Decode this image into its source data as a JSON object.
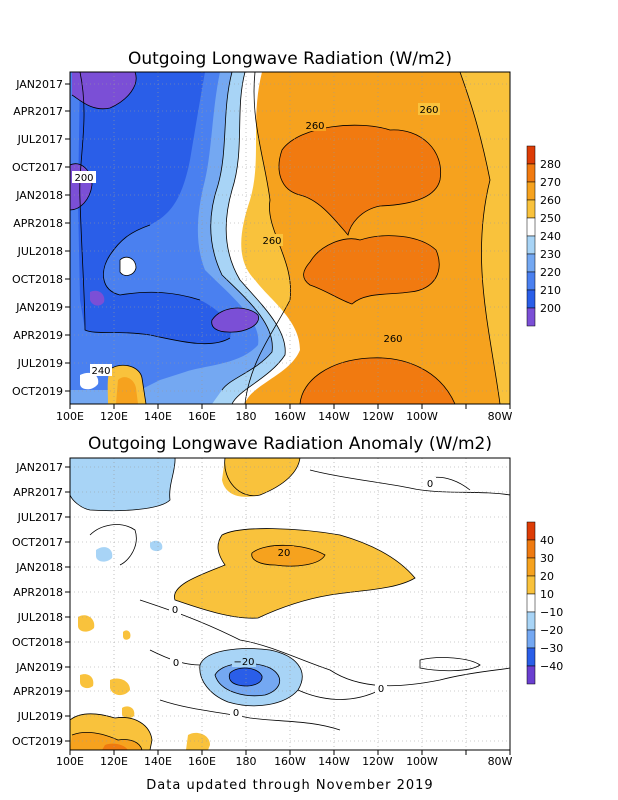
{
  "footer": "Data updated through November 2019",
  "chart_data": [
    {
      "type": "heatmap",
      "title": "Outgoing Longwave Radiation (W/m2)",
      "x_ticks": [
        "100E",
        "120E",
        "140E",
        "160E",
        "180",
        "160W",
        "140W",
        "120W",
        "100W",
        "80W"
      ],
      "y_ticks": [
        "JAN2017",
        "APR2017",
        "JUL2017",
        "OCT2017",
        "JAN2018",
        "APR2018",
        "JUL2018",
        "OCT2018",
        "JAN2019",
        "APR2019",
        "JUL2019",
        "OCT2019"
      ],
      "colorbar": {
        "labels": [
          "200",
          "210",
          "220",
          "230",
          "240",
          "250",
          "260",
          "270",
          "280"
        ],
        "colors": [
          "#7b4fd6",
          "#2a5ee8",
          "#4a80f0",
          "#74a8f2",
          "#a8d4f6",
          "#ffffff",
          "#f9c23c",
          "#f6a21e",
          "#f17a10",
          "#dd3c06"
        ]
      },
      "contour_labels": [
        "260",
        "260",
        "200",
        "260",
        "260",
        "240"
      ],
      "grid": true
    },
    {
      "type": "heatmap",
      "title": "Outgoing Longwave Radiation Anomaly (W/m2)",
      "x_ticks": [
        "100E",
        "120E",
        "140E",
        "160E",
        "180",
        "160W",
        "140W",
        "120W",
        "100W",
        "80W"
      ],
      "y_ticks": [
        "JAN2017",
        "APR2017",
        "JUL2017",
        "OCT2017",
        "JAN2018",
        "APR2018",
        "JUL2018",
        "OCT2018",
        "JAN2019",
        "APR2019",
        "JUL2019",
        "OCT2019"
      ],
      "colorbar": {
        "labels": [
          "40",
          "30",
          "20",
          "10",
          "−10",
          "−20",
          "−30",
          "−40"
        ],
        "colors": [
          "#6a3fd0",
          "#2a5ee8",
          "#74a8f2",
          "#a8d4f6",
          "#ffffff",
          "#f9c23c",
          "#f6a21e",
          "#ef7a10",
          "#dd3c06"
        ]
      },
      "contour_labels": [
        "0",
        "20",
        "0",
        "0",
        "−20",
        "0",
        "0"
      ],
      "grid": true
    }
  ]
}
